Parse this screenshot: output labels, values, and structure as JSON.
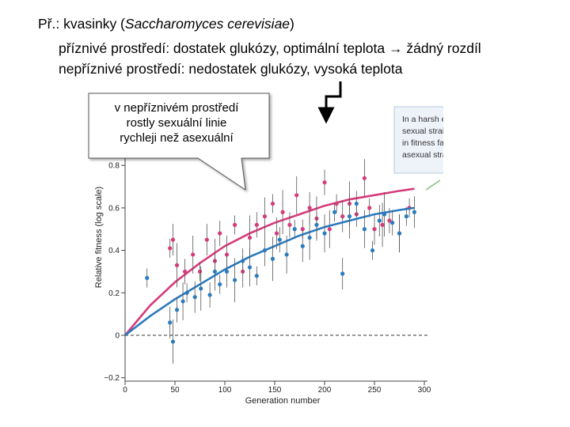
{
  "header": {
    "line1_prefix": "Př.: kvasinky (",
    "line1_species": "Saccharomyces cerevisiae",
    "line1_suffix": ")",
    "line2_text": "příznivé prostředí: dostatek glukózy, optimální teplota ",
    "line2_arrow": "→",
    "line2_result": " žádný rozdíl",
    "line3": "nepříznivé prostředí: nedostatek glukózy, vysoká teplota"
  },
  "callout": {
    "line1": "v nepříznivém prostředí",
    "line2": "rostly sexuální linie",
    "line3": "rychleji než asexuální"
  },
  "chart_data": {
    "type": "scatter",
    "xlabel": "Generation number",
    "ylabel": "Relative fitness (log scale)",
    "xlim": [
      0,
      300
    ],
    "ylim": [
      -0.2,
      1.0
    ],
    "xticks": [
      "0",
      "50",
      "100",
      "150",
      "200",
      "250",
      "300"
    ],
    "yticks": [
      "−0.2",
      "0",
      "0.2",
      "0.4",
      "0.6",
      "0.8"
    ],
    "annotation": {
      "line1": "In a harsh environment,",
      "line2": "sexual strains (red) increase",
      "line3": "in fitness faster than do",
      "line4": "asexual strains (blue)"
    },
    "series": [
      {
        "color": "#d63b7a",
        "fit": [
          [
            0,
            0
          ],
          [
            25,
            0.14
          ],
          [
            50,
            0.25
          ],
          [
            75,
            0.34
          ],
          [
            100,
            0.42
          ],
          [
            125,
            0.48
          ],
          [
            150,
            0.53
          ],
          [
            175,
            0.57
          ],
          [
            200,
            0.61
          ],
          [
            225,
            0.64
          ],
          [
            250,
            0.66
          ],
          [
            275,
            0.68
          ],
          [
            290,
            0.69
          ]
        ],
        "points": [
          [
            45,
            0.41
          ],
          [
            48,
            0.45
          ],
          [
            52,
            0.33
          ],
          [
            60,
            0.3
          ],
          [
            68,
            0.38
          ],
          [
            75,
            0.3
          ],
          [
            82,
            0.45
          ],
          [
            90,
            0.35
          ],
          [
            95,
            0.48
          ],
          [
            102,
            0.38
          ],
          [
            110,
            0.52
          ],
          [
            118,
            0.3
          ],
          [
            125,
            0.46
          ],
          [
            132,
            0.52
          ],
          [
            140,
            0.56
          ],
          [
            148,
            0.62
          ],
          [
            152,
            0.48
          ],
          [
            158,
            0.58
          ],
          [
            165,
            0.52
          ],
          [
            172,
            0.66
          ],
          [
            178,
            0.5
          ],
          [
            185,
            0.6
          ],
          [
            192,
            0.55
          ],
          [
            200,
            0.72
          ],
          [
            205,
            0.5
          ],
          [
            212,
            0.62
          ],
          [
            218,
            0.56
          ],
          [
            225,
            0.62
          ],
          [
            232,
            0.57
          ],
          [
            240,
            0.74
          ],
          [
            245,
            0.6
          ],
          [
            250,
            0.5
          ],
          [
            258,
            0.52
          ],
          [
            265,
            0.54
          ],
          [
            275,
            0.48
          ],
          [
            285,
            0.6
          ]
        ]
      },
      {
        "color": "#2b7bbf",
        "fit": [
          [
            0,
            0
          ],
          [
            25,
            0.09
          ],
          [
            50,
            0.17
          ],
          [
            75,
            0.24
          ],
          [
            100,
            0.31
          ],
          [
            125,
            0.37
          ],
          [
            150,
            0.42
          ],
          [
            175,
            0.47
          ],
          [
            200,
            0.51
          ],
          [
            225,
            0.54
          ],
          [
            250,
            0.57
          ],
          [
            275,
            0.59
          ],
          [
            290,
            0.6
          ]
        ],
        "points": [
          [
            22,
            0.27
          ],
          [
            45,
            0.06
          ],
          [
            48,
            -0.03
          ],
          [
            52,
            0.12
          ],
          [
            58,
            0.16
          ],
          [
            62,
            0.2
          ],
          [
            70,
            0.18
          ],
          [
            76,
            0.22
          ],
          [
            85,
            0.19
          ],
          [
            90,
            0.3
          ],
          [
            95,
            0.24
          ],
          [
            102,
            0.3
          ],
          [
            110,
            0.26
          ],
          [
            118,
            0.35
          ],
          [
            125,
            0.32
          ],
          [
            132,
            0.28
          ],
          [
            140,
            0.4
          ],
          [
            148,
            0.36
          ],
          [
            155,
            0.45
          ],
          [
            162,
            0.38
          ],
          [
            170,
            0.5
          ],
          [
            178,
            0.42
          ],
          [
            185,
            0.46
          ],
          [
            192,
            0.52
          ],
          [
            200,
            0.48
          ],
          [
            210,
            0.58
          ],
          [
            218,
            0.29
          ],
          [
            225,
            0.56
          ],
          [
            232,
            0.62
          ],
          [
            240,
            0.5
          ],
          [
            248,
            0.4
          ],
          [
            255,
            0.54
          ],
          [
            260,
            0.57
          ],
          [
            268,
            0.53
          ],
          [
            275,
            0.48
          ],
          [
            282,
            0.56
          ],
          [
            290,
            0.58
          ]
        ]
      }
    ]
  }
}
